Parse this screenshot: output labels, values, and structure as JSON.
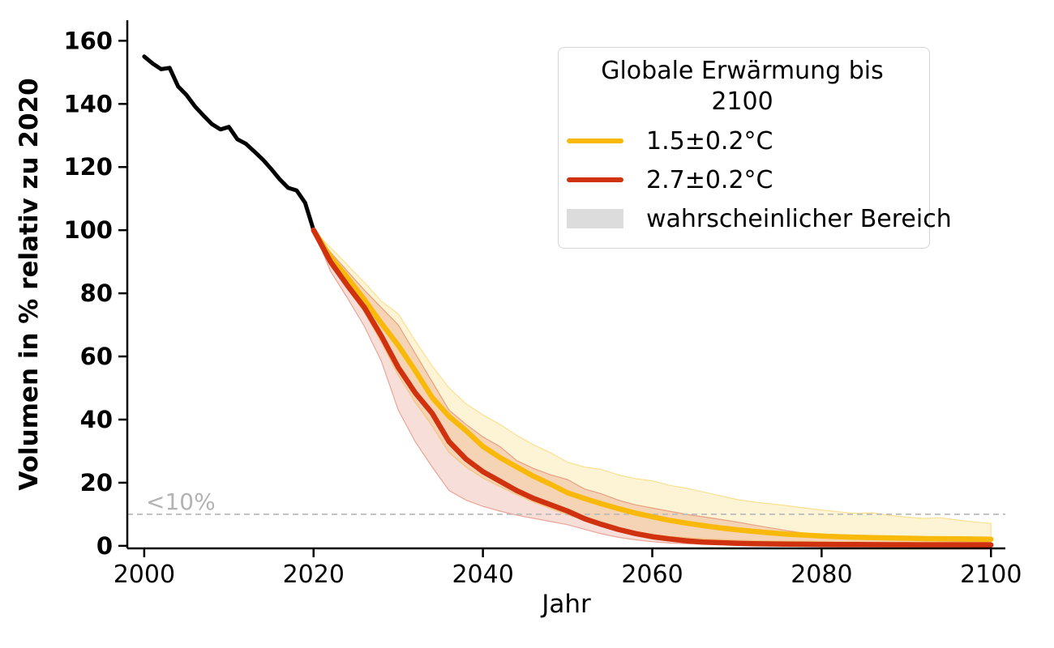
{
  "palette": {
    "historical": "#000000",
    "scenario_15": "#F8B90B",
    "scenario_27": "#D0310F",
    "band_15_fill": "#F5B800",
    "band_27_fill": "#CC3311",
    "band_opacity": 0.16,
    "band_edge_opacity": 0.38,
    "threshold_line": "#bbbbbb",
    "threshold_text": "#b3b3b3",
    "legend_patch": "#dcdcdc",
    "axis": "#000000"
  },
  "legend": {
    "title": "Globale Erwärmung bis 2100",
    "items": [
      {
        "label": "1.5±0.2°C",
        "swatch": "line"
      },
      {
        "label": "2.7±0.2°C",
        "swatch": "line"
      },
      {
        "label": "wahrscheinlicher Bereich",
        "swatch": "patch"
      }
    ]
  },
  "chart_data": {
    "type": "line",
    "title": "",
    "xlabel": "Jahr",
    "ylabel": "Volumen in % relativ zu 2020",
    "xlim": [
      1998,
      2101.7
    ],
    "ylim": [
      -0.8,
      166.5
    ],
    "xticks": [
      2000,
      2020,
      2040,
      2060,
      2080,
      2100
    ],
    "yticks": [
      0,
      20,
      40,
      60,
      80,
      100,
      120,
      140,
      160
    ],
    "grid": false,
    "legend_position": "upper right",
    "threshold": {
      "y": 10,
      "label": "<10%"
    },
    "series": [
      {
        "id": "historical",
        "legend_label": null,
        "x": [
          2000,
          2001,
          2002,
          2003,
          2004,
          2005,
          2006,
          2007,
          2008,
          2009,
          2010,
          2011,
          2012,
          2013,
          2014,
          2015,
          2016,
          2017,
          2018,
          2019,
          2020
        ],
        "y": [
          155,
          152.8,
          151,
          151.4,
          145.5,
          142.8,
          139.2,
          136.3,
          133.6,
          131.9,
          132.7,
          128.8,
          127.4,
          124.9,
          122.4,
          119.4,
          116.1,
          113.4,
          112.6,
          108.7,
          100
        ]
      },
      {
        "id": "warming-1-5",
        "legend_label": "1.5±0.2°C",
        "x": [
          2020,
          2022,
          2024,
          2026,
          2028,
          2030,
          2032,
          2034,
          2036,
          2038,
          2040,
          2042,
          2044,
          2046,
          2048,
          2050,
          2052,
          2054,
          2056,
          2058,
          2060,
          2062,
          2064,
          2066,
          2068,
          2070,
          2072,
          2074,
          2076,
          2078,
          2080,
          2082,
          2084,
          2086,
          2088,
          2090,
          2092,
          2094,
          2096,
          2098,
          2100
        ],
        "y": [
          100,
          91.5,
          85,
          78,
          70.5,
          63.5,
          55.5,
          47,
          41,
          36.5,
          31.5,
          28,
          25,
          22,
          19.5,
          16.8,
          15,
          13.3,
          11.8,
          10.4,
          9.2,
          8.1,
          7.2,
          6.4,
          5.7,
          5.1,
          4.6,
          4.1,
          3.7,
          3.4,
          3.1,
          2.9,
          2.75,
          2.6,
          2.5,
          2.4,
          2.3,
          2.25,
          2.2,
          2.15,
          2.1
        ],
        "band_upper": [
          100,
          94.5,
          89,
          83.5,
          77.5,
          73.5,
          65,
          57,
          50,
          45,
          41.5,
          38.5,
          35,
          32,
          29.5,
          26.5,
          25,
          24.2,
          22.5,
          21.3,
          20.6,
          19.2,
          18.3,
          17.1,
          15.9,
          14.7,
          13.9,
          13.3,
          12.7,
          12,
          11.4,
          10.8,
          10.3,
          10.5,
          9.7,
          9.1,
          8.7,
          8.9,
          8.2,
          7.6,
          7.1
        ],
        "band_lower": [
          100,
          89.5,
          81.5,
          74,
          64.5,
          54,
          45.5,
          38,
          29.5,
          25,
          21.5,
          18.8,
          16.2,
          13.8,
          11.8,
          9.8,
          8.2,
          6.8,
          5.5,
          4.4,
          3.6,
          3,
          2.6,
          2.25,
          2,
          1.8,
          1.65,
          1.55,
          1.45,
          1.4,
          1.35,
          1.3,
          1.25,
          1.2,
          1.2,
          1.15,
          1.15,
          1.1,
          1.1,
          1.1,
          1.1
        ]
      },
      {
        "id": "warming-2-7",
        "legend_label": "2.7±0.2°C",
        "x": [
          2020,
          2022,
          2024,
          2026,
          2028,
          2030,
          2032,
          2034,
          2036,
          2038,
          2040,
          2042,
          2044,
          2046,
          2048,
          2050,
          2052,
          2054,
          2056,
          2058,
          2060,
          2062,
          2064,
          2066,
          2068,
          2070,
          2072,
          2074,
          2076,
          2078,
          2080,
          2082,
          2084,
          2086,
          2088,
          2090,
          2092,
          2094,
          2096,
          2098,
          2100
        ],
        "y": [
          100,
          90,
          82.5,
          75.5,
          66.5,
          56.5,
          48.5,
          42,
          33,
          27.5,
          23.5,
          20.5,
          17.5,
          15,
          13,
          11,
          8.6,
          6.8,
          5.2,
          3.9,
          2.9,
          2.2,
          1.6,
          1.2,
          1,
          0.8,
          0.7,
          0.6,
          0.55,
          0.5,
          0.45,
          0.42,
          0.4,
          0.38,
          0.36,
          0.35,
          0.34,
          0.33,
          0.32,
          0.31,
          0.3
        ],
        "band_upper": [
          100,
          93,
          87,
          81,
          75.5,
          70,
          61,
          52,
          43,
          38.5,
          34.5,
          31.5,
          27,
          24.5,
          22.5,
          21,
          18,
          16.5,
          14.5,
          13,
          12,
          11,
          10,
          9.2,
          8.4,
          7.6,
          6.6,
          5.7,
          4.8,
          4,
          3.3,
          2.9,
          2.6,
          2.3,
          2.05,
          1.85,
          1.65,
          1.5,
          1.4,
          1.3,
          1.2
        ],
        "band_lower": [
          100,
          87,
          78.5,
          69.5,
          58.5,
          43,
          33,
          25,
          17.5,
          14.5,
          12.5,
          11,
          9.7,
          8.7,
          7.7,
          6.7,
          5.2,
          3.8,
          2.7,
          1.9,
          1.3,
          0.9,
          0.65,
          0.5,
          0.42,
          0.35,
          0.3,
          0.28,
          0.26,
          0.24,
          0.22,
          0.2,
          0.2,
          0.18,
          0.18,
          0.17,
          0.16,
          0.16,
          0.15,
          0.15,
          0.15
        ]
      }
    ]
  }
}
